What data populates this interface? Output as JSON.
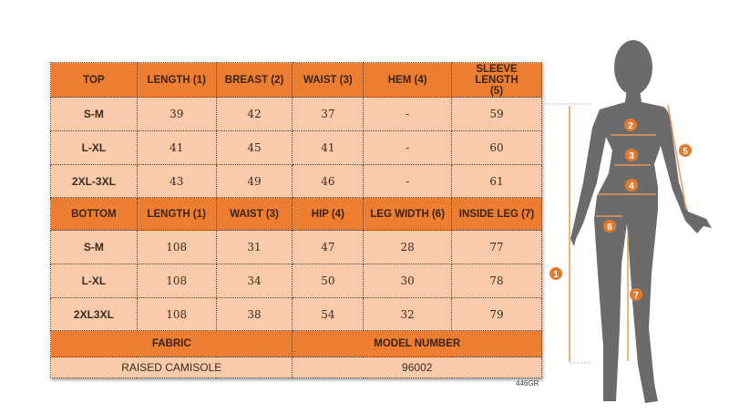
{
  "top": {
    "headers": [
      "TOP",
      "LENGTH (1)",
      "BREAST (2)",
      "WAIST (3)",
      "HEM (4)",
      "SLEEVE LENGTH (5)"
    ],
    "rows": [
      [
        "S-M",
        "39",
        "42",
        "37",
        "-",
        "59"
      ],
      [
        "L-XL",
        "41",
        "45",
        "41",
        "-",
        "60"
      ],
      [
        "2XL-3XL",
        "43",
        "49",
        "46",
        "-",
        "61"
      ]
    ]
  },
  "bottom": {
    "headers": [
      "BOTTOM",
      "LENGTH (1)",
      "WAIST (3)",
      "HIP (4)",
      "LEG WIDTH (6)",
      "INSIDE LEG (7)"
    ],
    "rows": [
      [
        "S-M",
        "108",
        "31",
        "47",
        "28",
        "77"
      ],
      [
        "L-XL",
        "108",
        "34",
        "50",
        "30",
        "78"
      ],
      [
        "2XL3XL",
        "108",
        "38",
        "54",
        "32",
        "79"
      ]
    ]
  },
  "info": {
    "fabric_label": "FABRIC",
    "model_label": "MODEL NUMBER",
    "fabric_value": "RAISED CAMISOLE",
    "model_value": "96002"
  },
  "code": "446GR",
  "markers": [
    "1",
    "2",
    "3",
    "4",
    "5",
    "6",
    "7"
  ],
  "colors": {
    "header": "#ed7d31",
    "cell": "#f9cbaa",
    "silhouette": "#6b6b6b",
    "marker": "#e07b2e"
  }
}
